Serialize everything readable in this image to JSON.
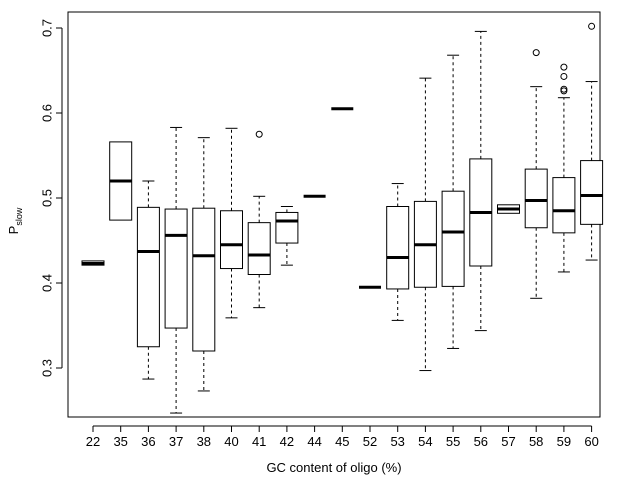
{
  "chart_data": {
    "type": "box",
    "title": "",
    "xlabel": "GC content of oligo (%)",
    "ylabel": "P",
    "ylabel_subscript": "slow",
    "ylim": [
      0.22,
      0.72
    ],
    "yticks": [
      0.3,
      0.4,
      0.5,
      0.6,
      0.7
    ],
    "ytick_labels": [
      "0.3",
      "0.4",
      "0.5",
      "0.6",
      "0.7"
    ],
    "grid": false,
    "legend": "none",
    "categories": [
      "22",
      "35",
      "36",
      "37",
      "38",
      "40",
      "41",
      "42",
      "44",
      "45",
      "52",
      "53",
      "54",
      "55",
      "56",
      "57",
      "58",
      "59",
      "60"
    ],
    "boxes": [
      {
        "category": "22",
        "min": 0.421,
        "q1": 0.421,
        "median": 0.423,
        "q3": 0.426,
        "max": 0.426,
        "outliers": []
      },
      {
        "category": "35",
        "min": 0.474,
        "q1": 0.474,
        "median": 0.52,
        "q3": 0.566,
        "max": 0.566,
        "outliers": []
      },
      {
        "category": "36",
        "min": 0.287,
        "q1": 0.325,
        "median": 0.437,
        "q3": 0.489,
        "max": 0.52,
        "outliers": []
      },
      {
        "category": "37",
        "min": 0.247,
        "q1": 0.347,
        "median": 0.456,
        "q3": 0.487,
        "max": 0.583,
        "outliers": []
      },
      {
        "category": "38",
        "min": 0.273,
        "q1": 0.32,
        "median": 0.432,
        "q3": 0.488,
        "max": 0.571,
        "outliers": []
      },
      {
        "category": "40",
        "min": 0.359,
        "q1": 0.417,
        "median": 0.445,
        "q3": 0.485,
        "max": 0.582,
        "outliers": []
      },
      {
        "category": "41",
        "min": 0.371,
        "q1": 0.41,
        "median": 0.433,
        "q3": 0.471,
        "max": 0.502,
        "outliers": [
          0.575
        ]
      },
      {
        "category": "42",
        "min": 0.421,
        "q1": 0.447,
        "median": 0.473,
        "q3": 0.483,
        "max": 0.49,
        "outliers": []
      },
      {
        "category": "44",
        "min": 0.502,
        "q1": 0.502,
        "median": 0.502,
        "q3": 0.502,
        "max": 0.502,
        "outliers": []
      },
      {
        "category": "45",
        "min": 0.605,
        "q1": 0.605,
        "median": 0.605,
        "q3": 0.605,
        "max": 0.605,
        "outliers": []
      },
      {
        "category": "52",
        "min": 0.395,
        "q1": 0.395,
        "median": 0.395,
        "q3": 0.395,
        "max": 0.395,
        "outliers": []
      },
      {
        "category": "53",
        "min": 0.356,
        "q1": 0.393,
        "median": 0.43,
        "q3": 0.49,
        "max": 0.517,
        "outliers": []
      },
      {
        "category": "54",
        "min": 0.297,
        "q1": 0.395,
        "median": 0.445,
        "q3": 0.496,
        "max": 0.641,
        "outliers": []
      },
      {
        "category": "55",
        "min": 0.323,
        "q1": 0.396,
        "median": 0.46,
        "q3": 0.508,
        "max": 0.668,
        "outliers": []
      },
      {
        "category": "56",
        "min": 0.344,
        "q1": 0.42,
        "median": 0.483,
        "q3": 0.546,
        "max": 0.696,
        "outliers": []
      },
      {
        "category": "57",
        "min": 0.482,
        "q1": 0.482,
        "median": 0.487,
        "q3": 0.492,
        "max": 0.492,
        "outliers": []
      },
      {
        "category": "58",
        "min": 0.382,
        "q1": 0.465,
        "median": 0.497,
        "q3": 0.534,
        "max": 0.631,
        "outliers": [
          0.671
        ]
      },
      {
        "category": "59",
        "min": 0.413,
        "q1": 0.459,
        "median": 0.485,
        "q3": 0.524,
        "max": 0.618,
        "outliers": [
          0.626,
          0.628,
          0.643,
          0.654
        ]
      },
      {
        "category": "60",
        "min": 0.427,
        "q1": 0.469,
        "median": 0.503,
        "q3": 0.544,
        "max": 0.637,
        "outliers": [
          0.702
        ]
      }
    ]
  }
}
